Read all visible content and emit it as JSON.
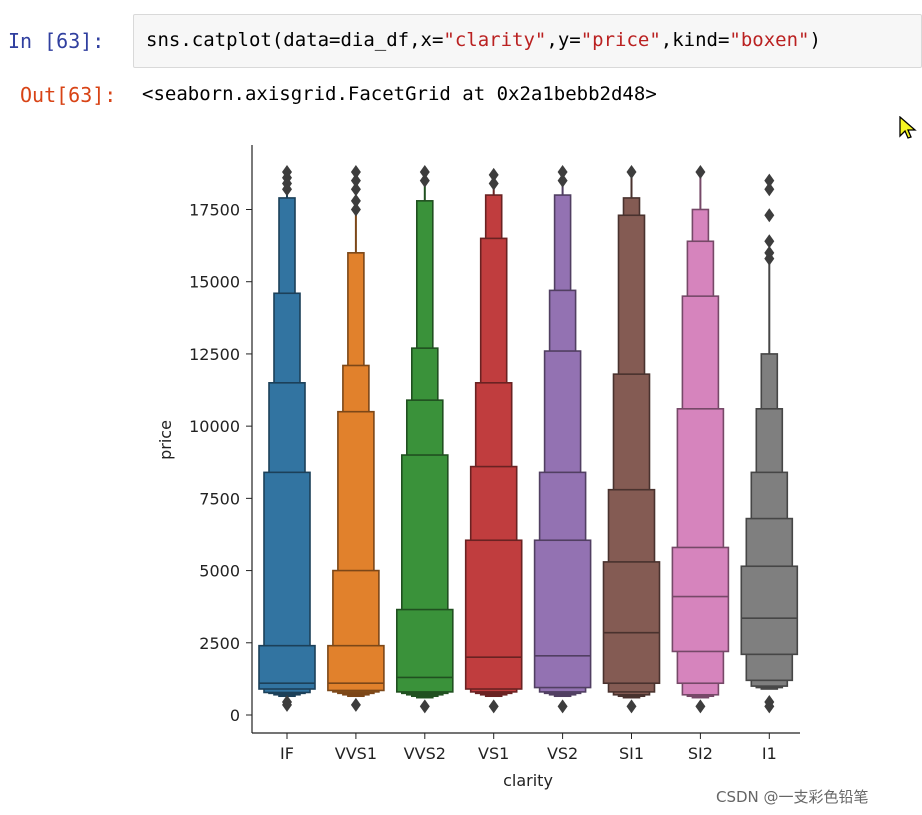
{
  "cell": {
    "in_prompt": "In  [63]:",
    "out_prompt": "Out[63]:",
    "code": {
      "prefix": "sns.catplot(data=dia_df,x=",
      "x_val": "\"clarity\"",
      "mid1": ",y=",
      "y_val": "\"price\"",
      "mid2": ",kind=",
      "kind_val": "\"boxen\"",
      "suffix": ")"
    },
    "output": "<seaborn.axisgrid.FacetGrid at 0x2a1bebb2d48>"
  },
  "watermark": "CSDN @一支彩色铅笔",
  "chart_data": {
    "type": "boxen",
    "xlabel": "clarity",
    "ylabel": "price",
    "ylim": [
      -500,
      19500
    ],
    "yticks": [
      0,
      2500,
      5000,
      7500,
      10000,
      12500,
      15000,
      17500
    ],
    "categories": [
      "IF",
      "VVS1",
      "VVS2",
      "VS1",
      "VS2",
      "SI1",
      "SI2",
      "I1"
    ],
    "colors": [
      "#3274a1",
      "#e1812c",
      "#3a923a",
      "#c03d3e",
      "#9372b2",
      "#845b53",
      "#d684bd",
      "#7f7f7f"
    ],
    "series": [
      {
        "median": 1100,
        "boxes": [
          [
            900,
            2400
          ],
          [
            780,
            8400
          ],
          [
            750,
            11500
          ],
          [
            700,
            14600
          ],
          [
            650,
            17900
          ]
        ],
        "outliers_high": [
          18200,
          18400,
          18600,
          18800
        ],
        "outliers_low": [
          350,
          450
        ]
      },
      {
        "median": 1100,
        "boxes": [
          [
            850,
            2400
          ],
          [
            800,
            5000
          ],
          [
            750,
            10500
          ],
          [
            700,
            12100
          ],
          [
            650,
            16000
          ]
        ],
        "outliers_high": [
          17500,
          17800,
          18200,
          18500,
          18800
        ],
        "outliers_low": [
          350
        ]
      },
      {
        "median": 1300,
        "boxes": [
          [
            800,
            3650
          ],
          [
            750,
            9000
          ],
          [
            700,
            10900
          ],
          [
            650,
            12700
          ],
          [
            600,
            17800
          ]
        ],
        "outliers_high": [
          18500,
          18800
        ],
        "outliers_low": [
          300
        ]
      },
      {
        "median": 2000,
        "boxes": [
          [
            900,
            6050
          ],
          [
            800,
            8600
          ],
          [
            750,
            11500
          ],
          [
            700,
            16500
          ],
          [
            650,
            18000
          ]
        ],
        "outliers_high": [
          18400,
          18700
        ],
        "outliers_low": [
          300
        ]
      },
      {
        "median": 2050,
        "boxes": [
          [
            950,
            6050
          ],
          [
            800,
            8400
          ],
          [
            750,
            12600
          ],
          [
            700,
            14700
          ],
          [
            650,
            18000
          ]
        ],
        "outliers_high": [
          18500,
          18800
        ],
        "outliers_low": [
          300
        ]
      },
      {
        "median": 2850,
        "boxes": [
          [
            1100,
            5300
          ],
          [
            800,
            7800
          ],
          [
            700,
            11800
          ],
          [
            650,
            17300
          ],
          [
            600,
            17900
          ]
        ],
        "outliers_high": [
          18800
        ],
        "outliers_low": [
          300
        ]
      },
      {
        "median": 4100,
        "boxes": [
          [
            2200,
            5800
          ],
          [
            1100,
            10600
          ],
          [
            700,
            14500
          ],
          [
            650,
            16400
          ],
          [
            600,
            17500
          ]
        ],
        "outliers_high": [
          18800
        ],
        "outliers_low": [
          300
        ]
      },
      {
        "median": 3350,
        "boxes": [
          [
            2100,
            5150
          ],
          [
            1200,
            6800
          ],
          [
            1000,
            8400
          ],
          [
            950,
            10600
          ],
          [
            900,
            12500
          ]
        ],
        "outliers_high": [
          15800,
          16000,
          16400,
          17300,
          18200,
          18500
        ],
        "outliers_low": [
          300,
          450
        ]
      }
    ]
  }
}
